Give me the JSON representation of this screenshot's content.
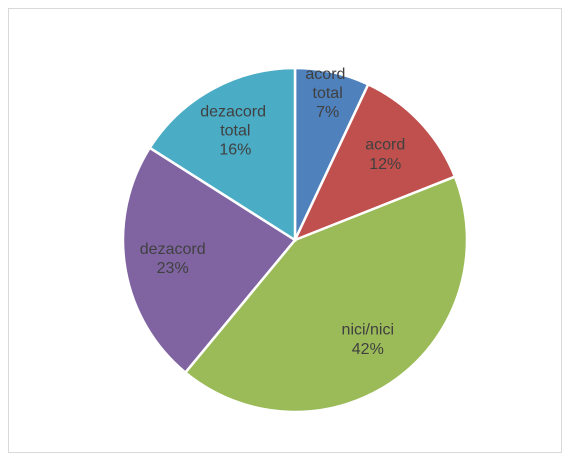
{
  "chart_data": {
    "type": "pie",
    "categories": [
      "acord total",
      "acord",
      "nici/nici",
      "dezacord",
      "dezacord total"
    ],
    "values": [
      7,
      12,
      42,
      23,
      16
    ],
    "value_labels": [
      "7%",
      "12%",
      "42%",
      "23%",
      "16%"
    ],
    "colors": [
      "#4f81bd",
      "#c0504d",
      "#9bbb59",
      "#8064a2",
      "#4bacc6"
    ]
  }
}
